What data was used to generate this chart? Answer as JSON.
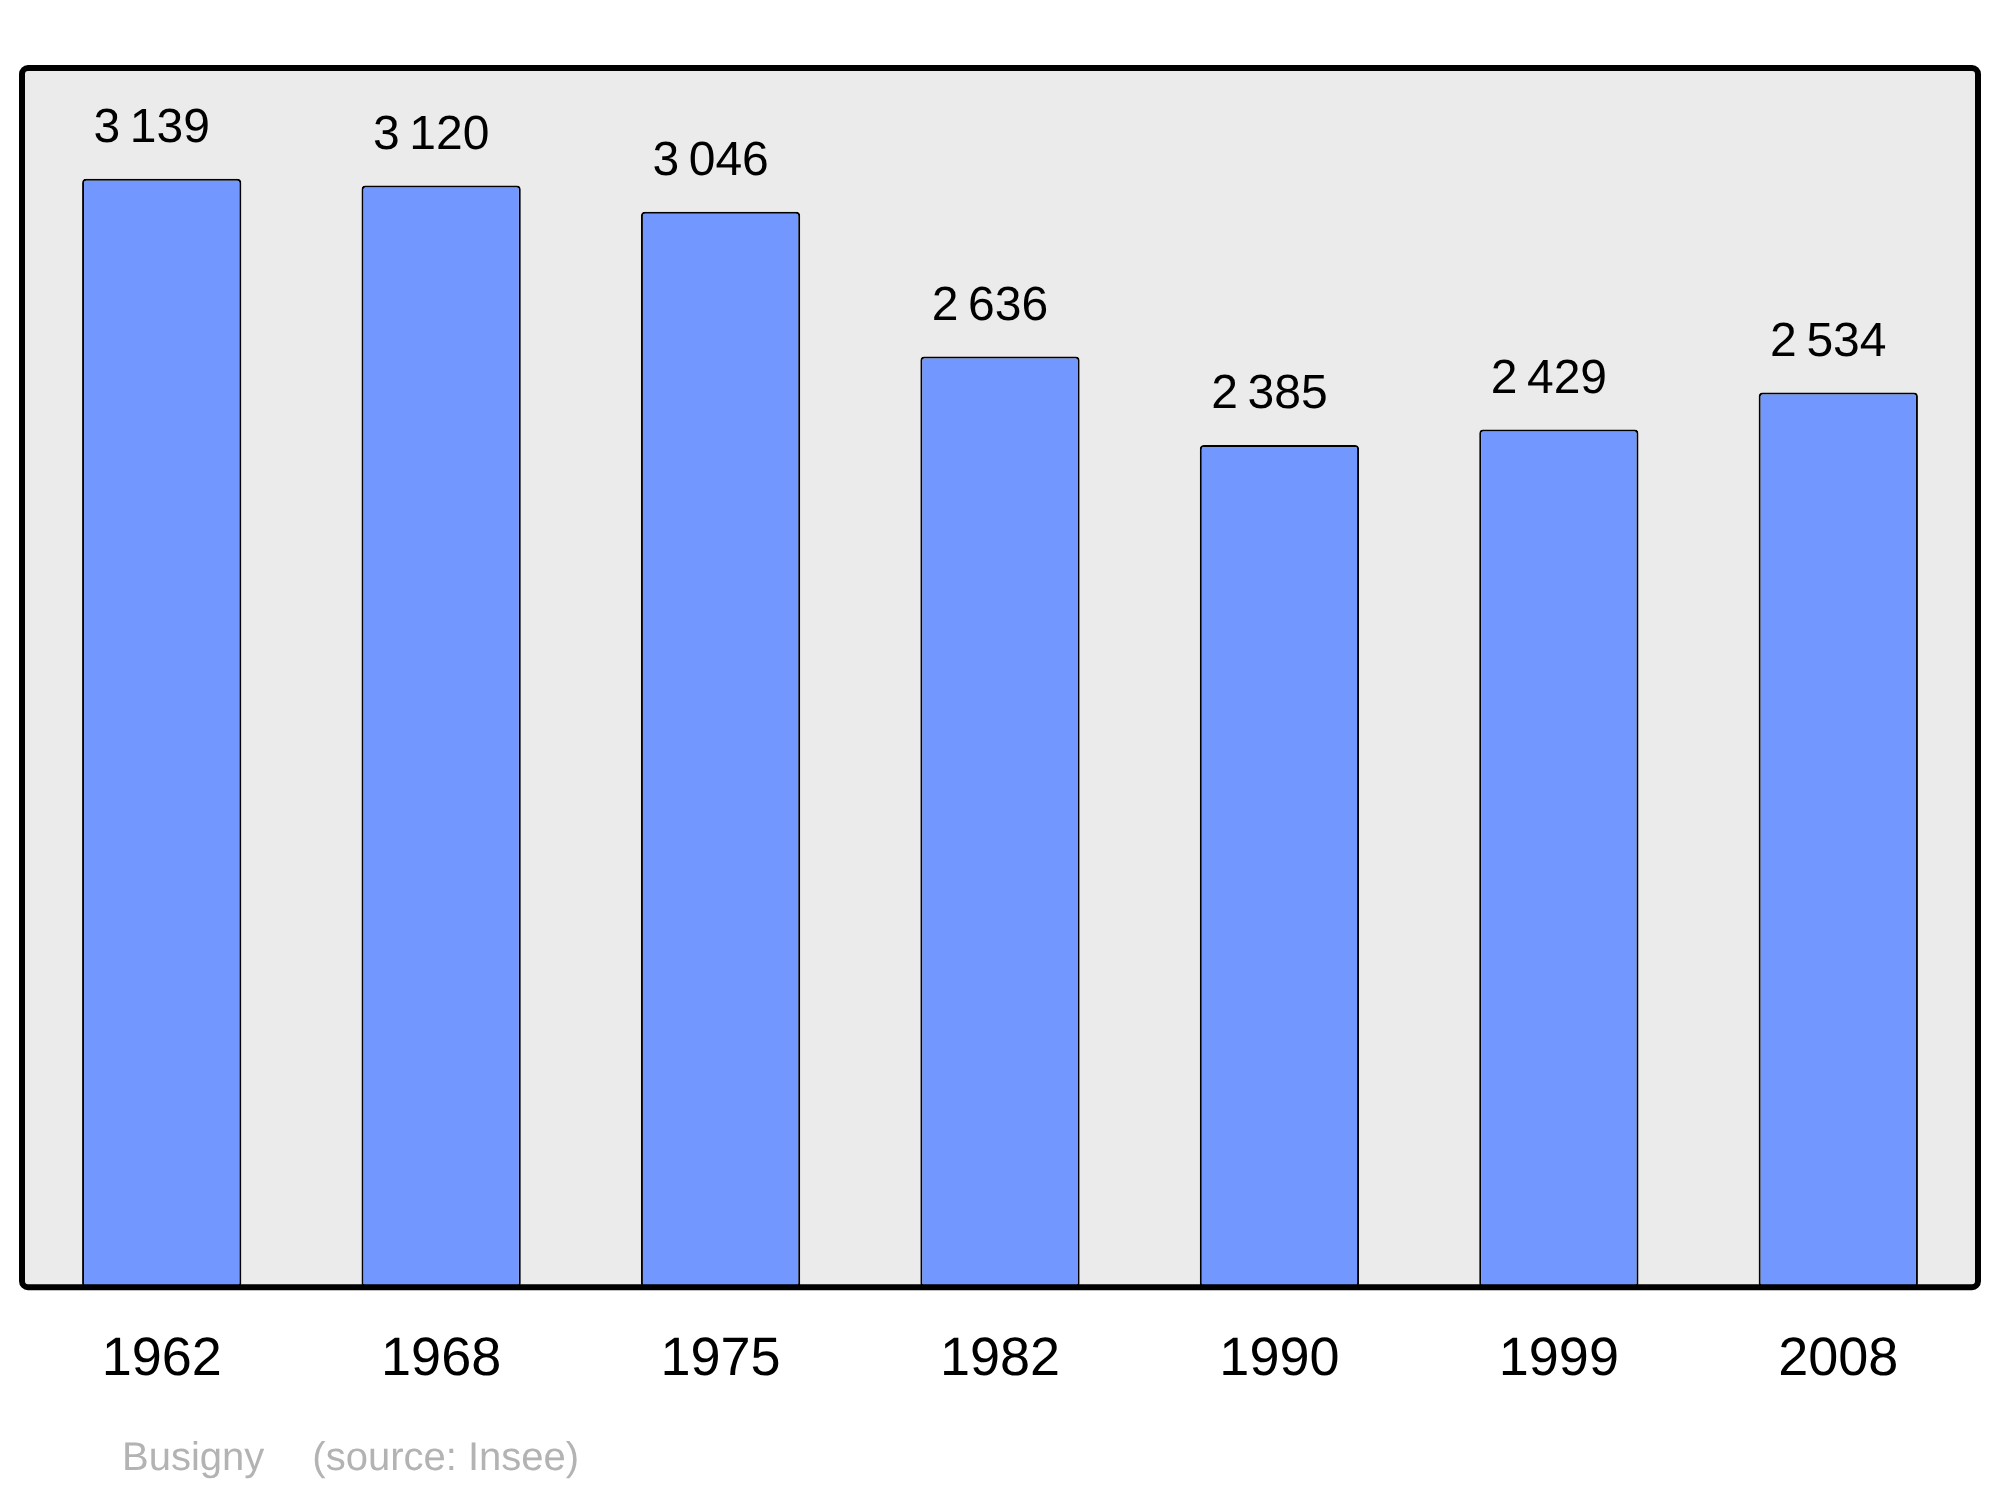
{
  "chart_data": {
    "type": "bar",
    "categories": [
      "1962",
      "1968",
      "1975",
      "1982",
      "1990",
      "1999",
      "2008"
    ],
    "values": [
      3139,
      3120,
      3046,
      2636,
      2385,
      2429,
      2534
    ],
    "color": "#7298ff",
    "data_labels": true,
    "grid": false,
    "legend": false,
    "annotations": [
      "Busigny",
      "(source: Insee)"
    ]
  }
}
